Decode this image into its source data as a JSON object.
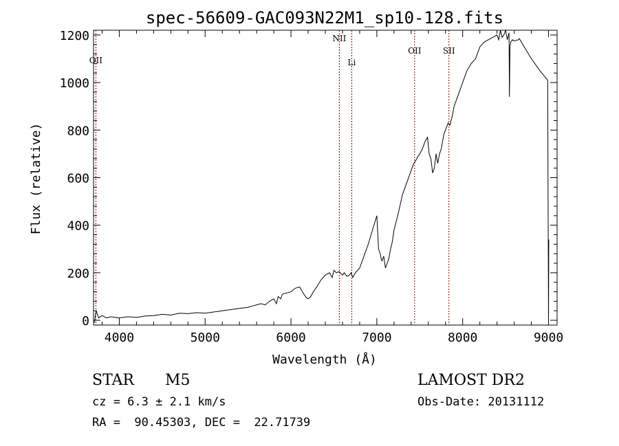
{
  "chart_data": {
    "type": "line",
    "title": "spec-56609-GAC093N22M1_sp10-128.fits",
    "xlabel": "Wavelength (Å)",
    "ylabel": "Flux (relative)",
    "xlim": [
      3700,
      9100
    ],
    "ylim": [
      -20,
      1220
    ],
    "x_ticks": [
      4000,
      5000,
      6000,
      7000,
      8000,
      9000
    ],
    "y_ticks": [
      0,
      200,
      400,
      600,
      800,
      1000,
      1200
    ],
    "grid": false,
    "line_color": "#000000",
    "marker_color": "#8b0000",
    "series": [
      {
        "x": [
          3710,
          3730,
          3760,
          3800,
          3850,
          3900,
          4000,
          4100,
          4200,
          4300,
          4400,
          4500,
          4600,
          4700,
          4800,
          4900,
          5000,
          5100,
          5200,
          5300,
          5400,
          5500,
          5550,
          5600,
          5650,
          5700,
          5750,
          5800,
          5830,
          5850,
          5880,
          5900,
          5950,
          6000,
          6050,
          6100,
          6150,
          6180,
          6200,
          6230,
          6260,
          6300,
          6350,
          6400,
          6450,
          6480,
          6500,
          6530,
          6560,
          6600,
          6620,
          6650,
          6680,
          6700,
          6720,
          6750,
          6800,
          6850,
          6900,
          6950,
          7000,
          7020,
          7040,
          7050,
          7060,
          7080,
          7100,
          7120,
          7140,
          7160,
          7180,
          7200,
          7250,
          7300,
          7350,
          7400,
          7430,
          7450,
          7480,
          7500,
          7530,
          7560,
          7590,
          7610,
          7630,
          7650,
          7670,
          7690,
          7710,
          7730,
          7750,
          7780,
          7800,
          7830,
          7850,
          7880,
          7900,
          7950,
          8000,
          8050,
          8100,
          8150,
          8200,
          8250,
          8300,
          8350,
          8400,
          8420,
          8440,
          8460,
          8480,
          8500,
          8520,
          8540,
          8545,
          8550,
          8560,
          8580,
          8600,
          8650,
          8660,
          8700,
          8800,
          8900,
          8990,
          9000,
          9003
        ],
        "y": [
          -10,
          40,
          10,
          20,
          10,
          15,
          10,
          15,
          12,
          18,
          20,
          25,
          22,
          30,
          28,
          32,
          30,
          35,
          40,
          45,
          50,
          55,
          60,
          65,
          70,
          65,
          80,
          90,
          70,
          100,
          90,
          110,
          115,
          120,
          135,
          140,
          110,
          95,
          90,
          100,
          120,
          140,
          170,
          190,
          200,
          180,
          210,
          200,
          205,
          190,
          200,
          185,
          190,
          200,
          180,
          200,
          220,
          270,
          320,
          380,
          440,
          300,
          280,
          260,
          250,
          270,
          220,
          240,
          260,
          300,
          330,
          380,
          450,
          530,
          580,
          630,
          660,
          670,
          690,
          700,
          720,
          750,
          770,
          700,
          680,
          620,
          640,
          700,
          660,
          700,
          720,
          780,
          800,
          830,
          820,
          860,
          900,
          950,
          1000,
          1050,
          1080,
          1100,
          1150,
          1170,
          1180,
          1190,
          1200,
          1180,
          1220,
          1190,
          1200,
          1220,
          1180,
          1210,
          940,
          1150,
          1170,
          1180,
          1175,
          1180,
          1185,
          1160,
          1100,
          1050,
          1010,
          0,
          340
        ]
      }
    ],
    "line_markers": [
      {
        "label": "OII",
        "x": 3727
      },
      {
        "label": "NII",
        "x": 6563
      },
      {
        "label": "Li",
        "x": 6708
      },
      {
        "label": "OII",
        "x": 7440
      },
      {
        "label": "SII",
        "x": 7840
      }
    ],
    "footer": {
      "object_class": "STAR",
      "subclass": "M5",
      "cz": "cz = 6.3 ± 2.1 km/s",
      "coords": "RA =  90.45303, DEC =  22.71739",
      "survey": "LAMOST DR2",
      "obs_date": "Obs-Date: 20131112"
    }
  }
}
